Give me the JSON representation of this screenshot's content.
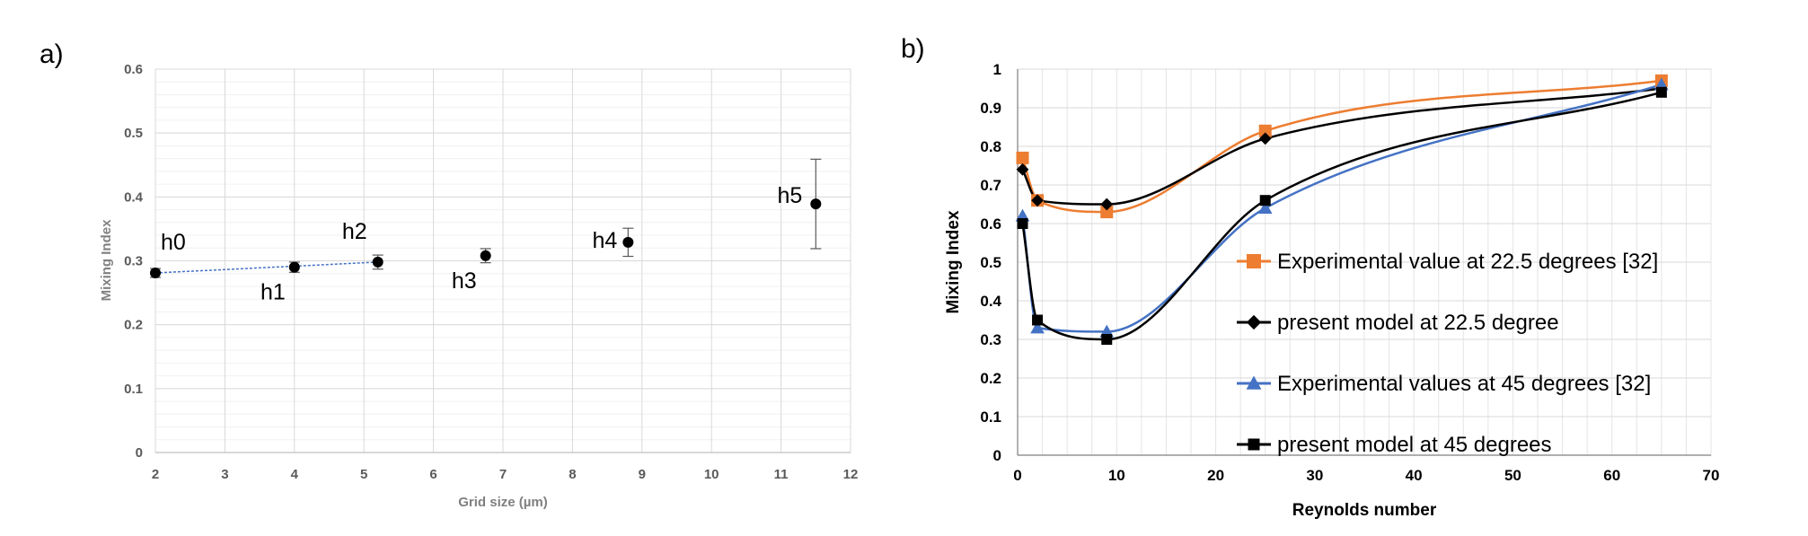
{
  "panels": {
    "a": {
      "label": "a)"
    },
    "b": {
      "label": "b)"
    }
  },
  "chart_data": [
    {
      "type": "scatter",
      "panel": "a)",
      "title": "",
      "xlabel": "Grid size (µm)",
      "ylabel": "Mixing Index",
      "xlim": [
        2,
        12
      ],
      "ylim": [
        0,
        0.6
      ],
      "x_ticks": [
        "2",
        "3",
        "4",
        "5",
        "6",
        "7",
        "8",
        "9",
        "10",
        "11",
        "12"
      ],
      "y_ticks": [
        "0",
        "0.1",
        "0.2",
        "0.3",
        "0.4",
        "0.5",
        "0.6"
      ],
      "grid": true,
      "marker_color": "#000000",
      "trendline_color": "#4472c4",
      "points": [
        {
          "label": "h0",
          "x": 2.0,
          "y": 0.281,
          "err": 0.007
        },
        {
          "label": "h1",
          "x": 4.0,
          "y": 0.29,
          "err": 0.008
        },
        {
          "label": "h2",
          "x": 5.2,
          "y": 0.298,
          "err": 0.011
        },
        {
          "label": "h3",
          "x": 6.75,
          "y": 0.308,
          "err": 0.011
        },
        {
          "label": "h4",
          "x": 8.8,
          "y": 0.329,
          "err": 0.022
        },
        {
          "label": "h5",
          "x": 11.5,
          "y": 0.389,
          "err": 0.07
        }
      ],
      "trendline": {
        "x": [
          2.0,
          5.2
        ],
        "y": [
          0.281,
          0.298
        ]
      }
    },
    {
      "type": "line",
      "panel": "b)",
      "title": "",
      "xlabel": "Reynolds number",
      "ylabel": "Mixing Index",
      "xlim": [
        0,
        70
      ],
      "ylim": [
        0,
        1
      ],
      "x_ticks": [
        "0",
        "10",
        "20",
        "30",
        "40",
        "50",
        "60",
        "70"
      ],
      "y_ticks": [
        "0",
        "0.1",
        "0.2",
        "0.3",
        "0.4",
        "0.5",
        "0.6",
        "0.7",
        "0.8",
        "0.9",
        "1"
      ],
      "grid": true,
      "legend_position": "right-center",
      "series": [
        {
          "name": "Experimental value at 22.5 degrees [32]",
          "color": "#ed7d31",
          "marker": "square",
          "x": [
            0.5,
            2,
            9,
            25,
            65
          ],
          "y": [
            0.77,
            0.66,
            0.63,
            0.84,
            0.97
          ]
        },
        {
          "name": "present model at 22.5 degree",
          "color": "#000000",
          "marker": "diamond",
          "x": [
            0.5,
            2,
            9,
            25,
            65
          ],
          "y": [
            0.74,
            0.66,
            0.65,
            0.82,
            0.95
          ]
        },
        {
          "name": "Experimental values at 45 degrees [32]",
          "color": "#4472c4",
          "marker": "triangle",
          "x": [
            0.5,
            2,
            9,
            25,
            65
          ],
          "y": [
            0.62,
            0.33,
            0.32,
            0.64,
            0.96
          ]
        },
        {
          "name": "present model at 45 degrees",
          "color": "#000000",
          "marker": "square",
          "x": [
            0.5,
            2,
            9,
            25,
            65
          ],
          "y": [
            0.6,
            0.35,
            0.3,
            0.66,
            0.94
          ]
        }
      ]
    }
  ]
}
